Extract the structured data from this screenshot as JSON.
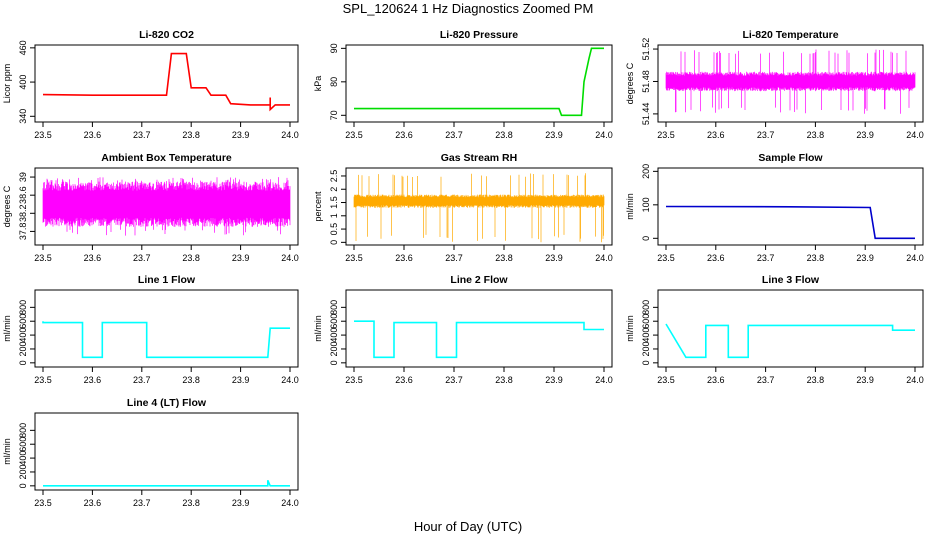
{
  "title": "SPL_120624  1 Hz Diagnostics Zoomed PM",
  "xlabel": "Hour of Day (UTC)",
  "chart_data": [
    {
      "type": "line",
      "title": "Li-820 CO2",
      "ylabel": "Licor ppm",
      "color": "#ff0000",
      "xlim": [
        23.5,
        24.0
      ],
      "ylim": [
        330,
        465
      ],
      "yticks": [
        340,
        400,
        460
      ],
      "xticks": [
        23.5,
        23.6,
        23.7,
        23.8,
        23.9,
        24.0
      ],
      "series": [
        {
          "x": [
            23.5,
            23.6,
            23.75,
            23.76,
            23.79,
            23.8,
            23.83,
            23.84,
            23.87,
            23.88,
            23.92,
            23.96,
            23.96,
            23.96,
            23.97,
            24.0
          ],
          "y": [
            378,
            377,
            377,
            450,
            450,
            390,
            390,
            377,
            377,
            362,
            360,
            360,
            373,
            352,
            360,
            360
          ]
        }
      ]
    },
    {
      "type": "line",
      "title": "Li-820 Pressure",
      "ylabel": "kPa",
      "color": "#00dd00",
      "xlim": [
        23.5,
        24.0
      ],
      "ylim": [
        68,
        91
      ],
      "yticks": [
        70,
        80,
        90
      ],
      "xticks": [
        23.5,
        23.6,
        23.7,
        23.8,
        23.9,
        24.0
      ],
      "series": [
        {
          "x": [
            23.5,
            23.75,
            23.91,
            23.915,
            23.955,
            23.96,
            23.97,
            23.975,
            24.0
          ],
          "y": [
            72,
            72,
            72,
            70,
            70,
            80,
            87,
            90,
            90
          ]
        }
      ]
    },
    {
      "type": "line",
      "title": "Li-820 Temperature",
      "ylabel": "degrees C",
      "color": "#ff00ff",
      "xlim": [
        23.5,
        24.0
      ],
      "ylim": [
        51.43,
        51.525
      ],
      "yticks": [
        51.44,
        51.48,
        51.52
      ],
      "xticks": [
        23.5,
        23.6,
        23.7,
        23.8,
        23.9,
        24.0
      ],
      "noise": {
        "center": 51.48,
        "band": 0.012,
        "spike_hi": 51.52,
        "spike_lo": 51.44
      }
    },
    {
      "type": "line",
      "title": "Ambient Box Temperature",
      "ylabel": "degrees C",
      "color": "#ff00ff",
      "xlim": [
        23.5,
        24.0
      ],
      "ylim": [
        37.5,
        39.2
      ],
      "yticks": [
        37.8,
        38.2,
        38.6,
        39.0
      ],
      "xticks": [
        23.5,
        23.6,
        23.7,
        23.8,
        23.9,
        24.0
      ],
      "noise": {
        "center": 38.4,
        "band": 0.5,
        "spike_hi": 39.0,
        "spike_lo": 37.7
      }
    },
    {
      "type": "line",
      "title": "Gas Stream RH",
      "ylabel": "percent",
      "color": "#ffaa00",
      "xlim": [
        23.5,
        24.0
      ],
      "ylim": [
        -0.1,
        2.8
      ],
      "yticks": [
        0.0,
        0.5,
        1.0,
        1.5,
        2.0,
        2.5
      ],
      "xticks": [
        23.5,
        23.6,
        23.7,
        23.8,
        23.9,
        24.0
      ],
      "noise": {
        "center": 1.55,
        "band": 0.25,
        "spike_hi": 2.6,
        "spike_lo": 0.0
      }
    },
    {
      "type": "line",
      "title": "Sample Flow",
      "ylabel": "ml/min",
      "color": "#0000cc",
      "xlim": [
        23.5,
        24.0
      ],
      "ylim": [
        -20,
        210
      ],
      "yticks": [
        0,
        100,
        200
      ],
      "xticks": [
        23.5,
        23.6,
        23.7,
        23.8,
        23.9,
        24.0
      ],
      "series": [
        {
          "x": [
            23.5,
            23.75,
            23.91,
            23.92,
            24.0
          ],
          "y": [
            95,
            94,
            92,
            0,
            0
          ]
        }
      ]
    },
    {
      "type": "line",
      "title": "Line 1 Flow",
      "ylabel": "ml/min",
      "color": "#00ffff",
      "xlim": [
        23.5,
        24.0
      ],
      "ylim": [
        -60,
        1050
      ],
      "yticks": [
        0,
        200,
        400,
        600,
        800
      ],
      "xticks": [
        23.5,
        23.6,
        23.7,
        23.8,
        23.9,
        24.0
      ],
      "series": [
        {
          "x": [
            23.5,
            23.5,
            23.58,
            23.58,
            23.62,
            23.62,
            23.71,
            23.71,
            23.955,
            23.96,
            24.0
          ],
          "y": [
            600,
            580,
            580,
            80,
            80,
            580,
            580,
            80,
            80,
            500,
            500
          ]
        }
      ]
    },
    {
      "type": "line",
      "title": "Line 2 Flow",
      "ylabel": "ml/min",
      "color": "#00ffff",
      "xlim": [
        23.5,
        24.0
      ],
      "ylim": [
        -60,
        1050
      ],
      "yticks": [
        0,
        200,
        400,
        600,
        800
      ],
      "xticks": [
        23.5,
        23.6,
        23.7,
        23.8,
        23.9,
        24.0
      ],
      "series": [
        {
          "x": [
            23.5,
            23.54,
            23.54,
            23.58,
            23.58,
            23.665,
            23.665,
            23.705,
            23.705,
            23.96,
            23.96,
            24.0
          ],
          "y": [
            600,
            600,
            80,
            80,
            580,
            580,
            80,
            80,
            580,
            580,
            480,
            480
          ]
        }
      ]
    },
    {
      "type": "line",
      "title": "Line 3 Flow",
      "ylabel": "ml/min",
      "color": "#00ffff",
      "xlim": [
        23.5,
        24.0
      ],
      "ylim": [
        -60,
        1050
      ],
      "yticks": [
        0,
        200,
        400,
        600,
        800
      ],
      "xticks": [
        23.5,
        23.6,
        23.7,
        23.8,
        23.9,
        24.0
      ],
      "series": [
        {
          "x": [
            23.5,
            23.54,
            23.54,
            23.58,
            23.58,
            23.625,
            23.625,
            23.665,
            23.665,
            23.955,
            23.955,
            24.0
          ],
          "y": [
            560,
            80,
            80,
            80,
            540,
            540,
            80,
            80,
            540,
            540,
            470,
            470
          ]
        }
      ]
    },
    {
      "type": "line",
      "title": "Line 4 (LT) Flow",
      "ylabel": "ml/min",
      "color": "#00ffff",
      "xlim": [
        23.5,
        24.0
      ],
      "ylim": [
        -60,
        1050
      ],
      "yticks": [
        0,
        200,
        400,
        600,
        800
      ],
      "xticks": [
        23.5,
        23.6,
        23.7,
        23.8,
        23.9,
        24.0
      ],
      "series": [
        {
          "x": [
            23.5,
            23.955,
            23.955,
            23.96,
            24.0
          ],
          "y": [
            0,
            0,
            80,
            0,
            0
          ]
        }
      ]
    }
  ]
}
